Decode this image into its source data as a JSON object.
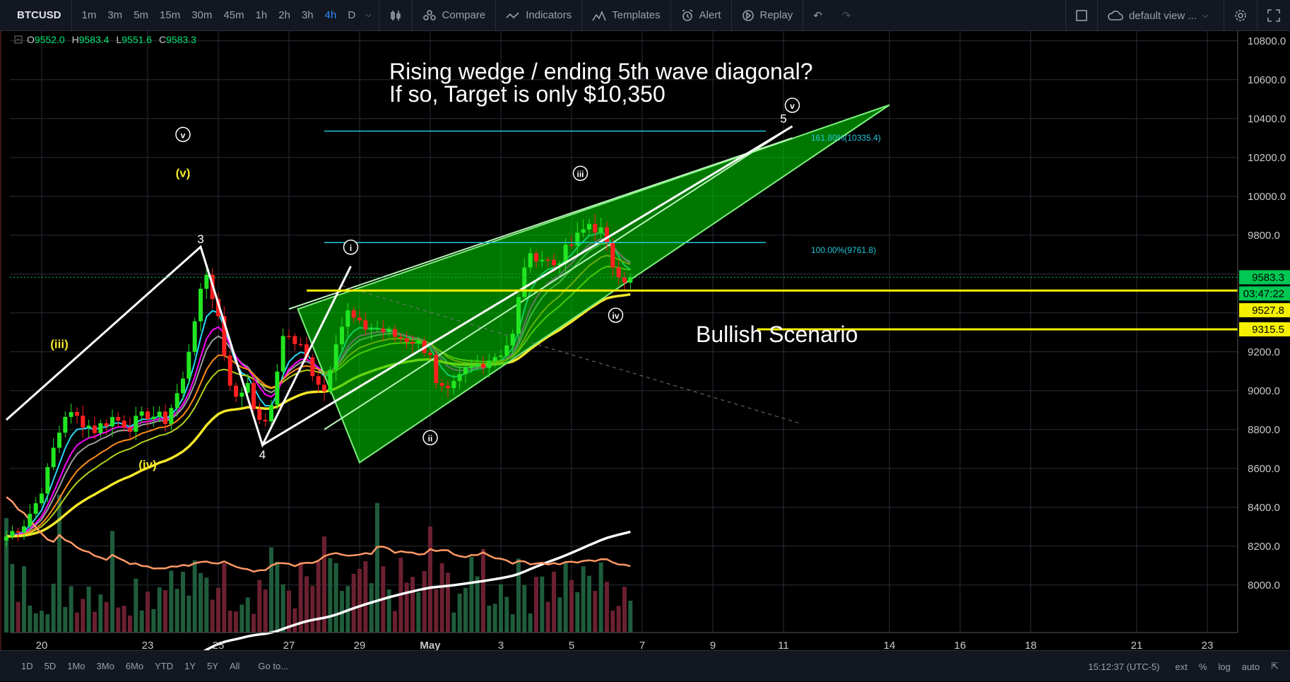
{
  "toolbar": {
    "symbol": "BTCUSD",
    "timeframes": [
      "1m",
      "3m",
      "5m",
      "15m",
      "30m",
      "45m",
      "1h",
      "2h",
      "3h",
      "4h",
      "D"
    ],
    "active_timeframe": "4h",
    "compare": "Compare",
    "indicators": "Indicators",
    "templates": "Templates",
    "alert": "Alert",
    "replay": "Replay",
    "layout_name": "default view ..."
  },
  "ohlc": {
    "o": "O",
    "o_val": "9552.0",
    "h": "H",
    "h_val": "9583.4",
    "l": "L",
    "l_val": "9551.6",
    "c": "C",
    "c_val": "9583.3"
  },
  "annotations": {
    "title_line1": "Rising wedge / ending 5th wave diagonal?",
    "title_line2": "If so, Target is only $10,350",
    "bullish": "Bullish Scenario",
    "fib_161": "161.80%(10335.4)",
    "fib_100": "100.00%(9761.8)",
    "wave_labels": [
      {
        "t": "3",
        "c": "#ffffff",
        "d": "2018-04-24T12",
        "p": 9760
      },
      {
        "t": "4",
        "c": "#ffffff",
        "d": "2018-04-26T06",
        "p": 8650
      },
      {
        "t": "5",
        "c": "#ffffff",
        "d": "2018-05-11",
        "p": 10380
      },
      {
        "t": "(v)",
        "c": "#f2e72a",
        "d": "2018-04-24",
        "p": 10100
      },
      {
        "t": "(iii)",
        "c": "#f2e72a",
        "d": "2018-04-20T12",
        "p": 9220
      },
      {
        "t": "(iv)",
        "c": "#f2e72a",
        "d": "2018-04-23",
        "p": 8600
      }
    ],
    "circled_labels": [
      {
        "t": "v",
        "d": "2018-04-24",
        "p": 10300
      },
      {
        "t": "i",
        "d": "2018-04-28T18",
        "p": 9720
      },
      {
        "t": "ii",
        "d": "2018-05-01",
        "p": 8740
      },
      {
        "t": "iii",
        "d": "2018-05-05T06",
        "p": 10100
      },
      {
        "t": "iv",
        "d": "2018-05-06T06",
        "p": 9370
      },
      {
        "t": "v",
        "d": "2018-05-11T06",
        "p": 10450
      }
    ]
  },
  "price_tags": [
    {
      "label": "9583.3",
      "price": 9583.3,
      "bg": "#00c853",
      "fg": "#000000"
    },
    {
      "label": "03:47:22",
      "price": 9500,
      "bg": "#00c853",
      "fg": "#000000"
    },
    {
      "label": "9527.8",
      "price": 9414,
      "bg": "#f5f100",
      "fg": "#000000"
    },
    {
      "label": "9315.5",
      "price": 9315.5,
      "bg": "#f5f100",
      "fg": "#000000"
    }
  ],
  "chart_data": {
    "type": "candlestick",
    "symbol": "BTCUSD",
    "interval": "4h",
    "x_range": [
      "2018-04-19",
      "2018-04-24",
      "2018-05-24"
    ],
    "ylim": [
      7850,
      10850
    ],
    "y_ticks": [
      8000,
      8200,
      8400,
      8600,
      8800,
      9000,
      9200,
      9400,
      9600,
      9800,
      10000,
      10200,
      10400,
      10600,
      10800
    ],
    "x_ticks": [
      "20",
      "23",
      "25",
      "27",
      "29",
      "May",
      "3",
      "5",
      "7",
      "9",
      "11",
      "14",
      "16",
      "18",
      "21",
      "23"
    ],
    "x_tick_dates": [
      "2018-04-20",
      "2018-04-23",
      "2018-04-25",
      "2018-04-27",
      "2018-04-29",
      "2018-05-01",
      "2018-05-03",
      "2018-05-05",
      "2018-05-07",
      "2018-05-09",
      "2018-05-11",
      "2018-05-14",
      "2018-05-16",
      "2018-05-18",
      "2018-05-21",
      "2018-05-23"
    ],
    "close_anchors": [
      [
        "2018-04-19T00",
        8250
      ],
      [
        "2018-04-19T12",
        8320
      ],
      [
        "2018-04-19T20",
        8420
      ],
      [
        "2018-04-20T04",
        8580
      ],
      [
        "2018-04-20T08",
        8700
      ],
      [
        "2018-04-20T16",
        8880
      ],
      [
        "2018-04-21T00",
        8860
      ],
      [
        "2018-04-21T12",
        8800
      ],
      [
        "2018-04-22T00",
        8860
      ],
      [
        "2018-04-22T12",
        8820
      ],
      [
        "2018-04-23T00",
        8880
      ],
      [
        "2018-04-23T12",
        8850
      ],
      [
        "2018-04-24T00",
        9050
      ],
      [
        "2018-04-24T08",
        9380
      ],
      [
        "2018-04-24T16",
        9600
      ],
      [
        "2018-04-25T00",
        9380
      ],
      [
        "2018-04-25T06",
        9100
      ],
      [
        "2018-04-25T12",
        8950
      ],
      [
        "2018-04-25T20",
        9050
      ],
      [
        "2018-04-26T04",
        8820
      ],
      [
        "2018-04-26T12",
        8900
      ],
      [
        "2018-04-26T20",
        9300
      ],
      [
        "2018-04-27T08",
        9220
      ],
      [
        "2018-04-27T16",
        9100
      ],
      [
        "2018-04-28T00",
        9000
      ],
      [
        "2018-04-28T08",
        9270
      ],
      [
        "2018-04-28T16",
        9400
      ],
      [
        "2018-04-29T00",
        9330
      ],
      [
        "2018-04-29T12",
        9320
      ],
      [
        "2018-04-30T00",
        9280
      ],
      [
        "2018-04-30T12",
        9260
      ],
      [
        "2018-05-01T00",
        9200
      ],
      [
        "2018-05-01T04",
        9020
      ],
      [
        "2018-05-01T12",
        8980
      ],
      [
        "2018-05-02T00",
        9100
      ],
      [
        "2018-05-02T12",
        9150
      ],
      [
        "2018-05-03T00",
        9200
      ],
      [
        "2018-05-03T08",
        9280
      ],
      [
        "2018-05-03T16",
        9650
      ],
      [
        "2018-05-04T00",
        9700
      ],
      [
        "2018-05-04T12",
        9650
      ],
      [
        "2018-05-05T00",
        9750
      ],
      [
        "2018-05-05T12",
        9860
      ],
      [
        "2018-05-05T20",
        9820
      ],
      [
        "2018-05-06T04",
        9650
      ],
      [
        "2018-05-06T12",
        9580
      ],
      [
        "2018-05-06T16",
        9583
      ]
    ],
    "ohlc_last": {
      "open": 9552.0,
      "high": 9583.4,
      "low": 9551.6,
      "close": 9583.3
    },
    "moving_averages": [
      {
        "color": "#2ad7f5"
      },
      {
        "color": "#9e9e9e"
      },
      {
        "color": "#b7cf1c"
      },
      {
        "color": "#ff00ff"
      },
      {
        "color": "#ff8c1a"
      },
      {
        "color": "#f5e82a"
      },
      {
        "color": "#ffffff"
      }
    ],
    "horizontal_levels": [
      {
        "price": 9515,
        "color": "#f5f100"
      },
      {
        "price": 9315.5,
        "color": "#f5f100"
      },
      {
        "price": 9583.3,
        "color": "#00c853",
        "dotted": true
      }
    ],
    "fib_levels": [
      {
        "price": 10335.4,
        "label": "161.80%(10335.4)"
      },
      {
        "price": 9761.8,
        "label": "100.00%(9761.8)"
      }
    ]
  }
}
